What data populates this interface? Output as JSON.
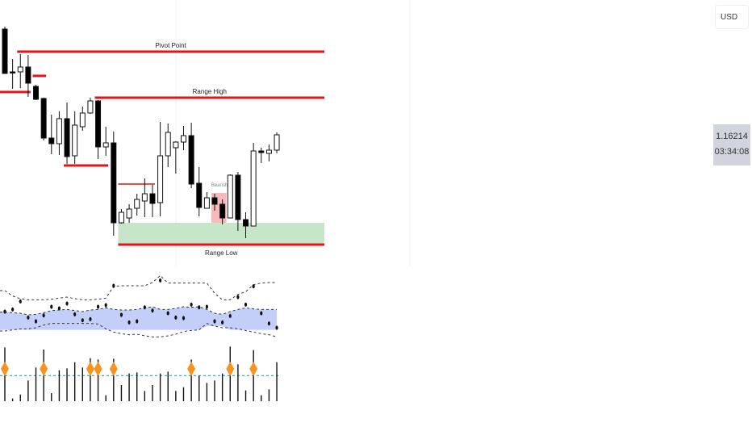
{
  "currency_selector": {
    "label": "USD"
  },
  "price_label": {
    "price": "1.16214",
    "countdown": "03:34:08"
  },
  "chart_data": {
    "type": "candlestick",
    "ohlc": [
      [
        1.16476,
        1.16482,
        1.16366,
        1.16366
      ],
      [
        1.1637,
        1.16402,
        1.16328,
        1.16368
      ],
      [
        1.1637,
        1.16414,
        1.1633,
        1.16382
      ],
      [
        1.16382,
        1.16412,
        1.16308,
        1.16342
      ],
      [
        1.16334,
        1.16338,
        1.163,
        1.16302
      ],
      [
        1.16304,
        1.16306,
        1.162,
        1.16206
      ],
      [
        1.16206,
        1.16264,
        1.16166,
        1.16192
      ],
      [
        1.16192,
        1.16272,
        1.16164,
        1.16254
      ],
      [
        1.16254,
        1.16294,
        1.16142,
        1.1616
      ],
      [
        1.16162,
        1.16272,
        1.16142,
        1.16238
      ],
      [
        1.16234,
        1.16284,
        1.16224,
        1.16268
      ],
      [
        1.16268,
        1.16306,
        1.16266,
        1.16298
      ],
      [
        1.16298,
        1.163,
        1.16154,
        1.16184
      ],
      [
        1.16184,
        1.16234,
        1.16162,
        1.16194
      ],
      [
        1.16194,
        1.16222,
        1.15964,
        1.15996
      ],
      [
        1.15996,
        1.1603,
        1.15994,
        1.16022
      ],
      [
        1.16008,
        1.16042,
        1.15996,
        1.1603
      ],
      [
        1.16032,
        1.16068,
        1.16014,
        1.16054
      ],
      [
        1.1605,
        1.16106,
        1.1601,
        1.16068
      ],
      [
        1.16068,
        1.1609,
        1.1601,
        1.16044
      ],
      [
        1.16046,
        1.16246,
        1.16012,
        1.16162
      ],
      [
        1.16162,
        1.16242,
        1.16134,
        1.1622
      ],
      [
        1.16182,
        1.16198,
        1.16118,
        1.16196
      ],
      [
        1.16196,
        1.16236,
        1.16176,
        1.16212
      ],
      [
        1.16212,
        1.16244,
        1.16082,
        1.16092
      ],
      [
        1.16094,
        1.16134,
        1.16012,
        1.16034
      ],
      [
        1.16032,
        1.16072,
        1.16032,
        1.16058
      ],
      [
        1.16058,
        1.16068,
        1.16026,
        1.16042
      ],
      [
        1.16042,
        1.16054,
        1.15992,
        1.16008
      ],
      [
        1.16008,
        1.16116,
        1.16008,
        1.16114
      ],
      [
        1.16114,
        1.16122,
        1.15976,
        1.16004
      ],
      [
        1.16004,
        1.16022,
        1.15958,
        1.15988
      ],
      [
        1.15988,
        1.16194,
        1.15988,
        1.16174
      ],
      [
        1.16174,
        1.16182,
        1.16144,
        1.1617
      ],
      [
        1.16168,
        1.1619,
        1.16148,
        1.16176
      ],
      [
        1.16176,
        1.1622,
        1.16168,
        1.16214
      ]
    ],
    "levels": [
      {
        "label": "Pivot Point",
        "price": 1.1642,
        "from_index": 2
      },
      {
        "label": "Range High",
        "price": 1.16306,
        "from_index": 12
      },
      {
        "label": "Range Low",
        "price": 1.15942,
        "from_index": 15
      }
    ],
    "minor_levels": [
      {
        "price": 1.1632,
        "from_index": 0,
        "to_index": 3
      },
      {
        "price": 1.1636,
        "from_index": 4,
        "to_index": 5
      },
      {
        "price": 1.16138,
        "from_index": 8,
        "to_index": 13
      },
      {
        "price": 1.16092,
        "from_index": 15,
        "to_index": 19
      }
    ],
    "demand_zone": {
      "top": 1.15996,
      "bottom": 1.15942,
      "from_index": 15
    },
    "bearish_box": {
      "label": "Bearish",
      "top": 1.1607,
      "bottom": 1.15996,
      "from_index": 27,
      "to_index": 28
    },
    "colors": {
      "level": "#e3121b",
      "zone": "#c7e6c9",
      "bearish_box": "#f6b9bc",
      "band": "#c4cff9",
      "diamond": "#f7931e",
      "threshold": "#26a69a"
    },
    "oscillator": {
      "values": [
        46,
        50,
        65,
        35,
        28,
        39,
        55,
        52,
        61,
        41,
        30,
        32,
        55,
        58,
        94,
        40,
        26,
        28,
        54,
        48,
        104,
        43,
        35,
        34,
        59,
        54,
        55,
        28,
        26,
        38,
        73,
        59,
        93,
        43,
        24,
        16
      ],
      "upper": [
        85,
        75,
        70,
        68,
        68,
        68,
        69,
        71,
        73,
        70,
        68,
        68,
        69,
        71,
        93,
        94,
        94,
        94,
        94,
        100,
        113,
        99,
        99,
        99,
        99,
        99,
        99,
        80,
        68,
        68,
        78,
        83,
        96,
        99,
        100,
        100
      ],
      "band_top": [
        45,
        44,
        43,
        40,
        41,
        44,
        48,
        49,
        50,
        48,
        46,
        49,
        50,
        53,
        50,
        49,
        49,
        50,
        53,
        55,
        50,
        50,
        52,
        55,
        54,
        55,
        50,
        43,
        41,
        46,
        50,
        53,
        51,
        50,
        50,
        50
      ],
      "band_bottom": [
        12,
        12,
        12,
        12,
        12,
        12,
        12,
        12,
        12,
        12,
        12,
        12,
        12,
        12,
        12,
        12,
        12,
        12,
        12,
        12,
        12,
        12,
        12,
        12,
        12,
        12,
        19,
        19,
        19,
        12,
        12,
        12,
        12,
        12,
        12,
        12
      ],
      "lower": [
        10,
        12,
        14,
        14,
        16,
        21,
        24,
        24,
        24,
        24,
        24,
        24,
        23,
        14,
        8,
        5,
        3,
        4,
        1,
        -1,
        -1,
        1,
        4,
        9,
        11,
        12,
        24,
        19,
        16,
        16,
        14,
        11,
        8,
        5,
        3,
        -1
      ]
    },
    "volume": {
      "values": [
        200,
        10,
        25,
        77,
        125,
        192,
        30,
        115,
        122,
        145,
        125,
        160,
        155,
        22,
        158,
        60,
        103,
        107,
        38,
        60,
        103,
        110,
        38,
        52,
        155,
        95,
        68,
        77,
        103,
        203,
        137,
        40,
        190,
        22,
        44,
        145
      ],
      "threshold": 95,
      "signal_indices": [
        0,
        5,
        11,
        12,
        14,
        24,
        29,
        32
      ]
    }
  }
}
